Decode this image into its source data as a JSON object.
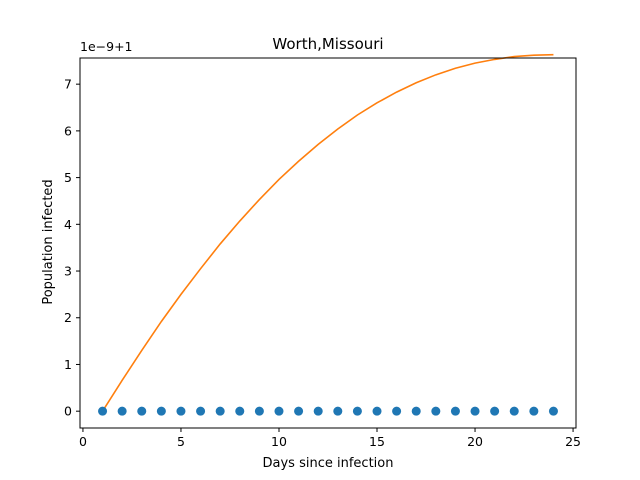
{
  "chart_data": {
    "type": "scatter",
    "title": "Worth,Missouri",
    "xlabel": "Days since infection",
    "ylabel": "Population infected",
    "y_offset_label": "1e−9+1",
    "xlim": [
      -0.15,
      25.15
    ],
    "ylim": [
      -0.36,
      7.56
    ],
    "x_ticks": [
      0,
      5,
      10,
      15,
      20,
      25
    ],
    "y_ticks": [
      0,
      1,
      2,
      3,
      4,
      5,
      6,
      7
    ],
    "grid": false,
    "colors": {
      "observed": "#1f77b4",
      "model": "#ff7f0e"
    },
    "series": [
      {
        "kind": "scatter",
        "x": [
          1,
          2,
          3,
          4,
          5,
          6,
          7,
          8,
          9,
          10,
          11,
          12,
          13,
          14,
          15,
          16,
          17,
          18,
          19,
          20,
          21,
          22,
          23,
          24
        ],
        "y": [
          0,
          0,
          0,
          0,
          0,
          0,
          0,
          0,
          0,
          0,
          0,
          0,
          0,
          0,
          0,
          0,
          0,
          0,
          0,
          0,
          0,
          0,
          0,
          0
        ]
      },
      {
        "kind": "line",
        "x": [
          1,
          2,
          3,
          4,
          5,
          6,
          7,
          8,
          9,
          10,
          11,
          12,
          13,
          14,
          15,
          16,
          17,
          18,
          19,
          20,
          21,
          22,
          23,
          24
        ],
        "y": [
          0.0,
          0.66,
          1.3,
          1.92,
          2.5,
          3.05,
          3.58,
          4.07,
          4.53,
          4.96,
          5.35,
          5.71,
          6.04,
          6.34,
          6.6,
          6.83,
          7.03,
          7.2,
          7.34,
          7.45,
          7.53,
          7.59,
          7.62,
          7.63
        ]
      }
    ]
  }
}
